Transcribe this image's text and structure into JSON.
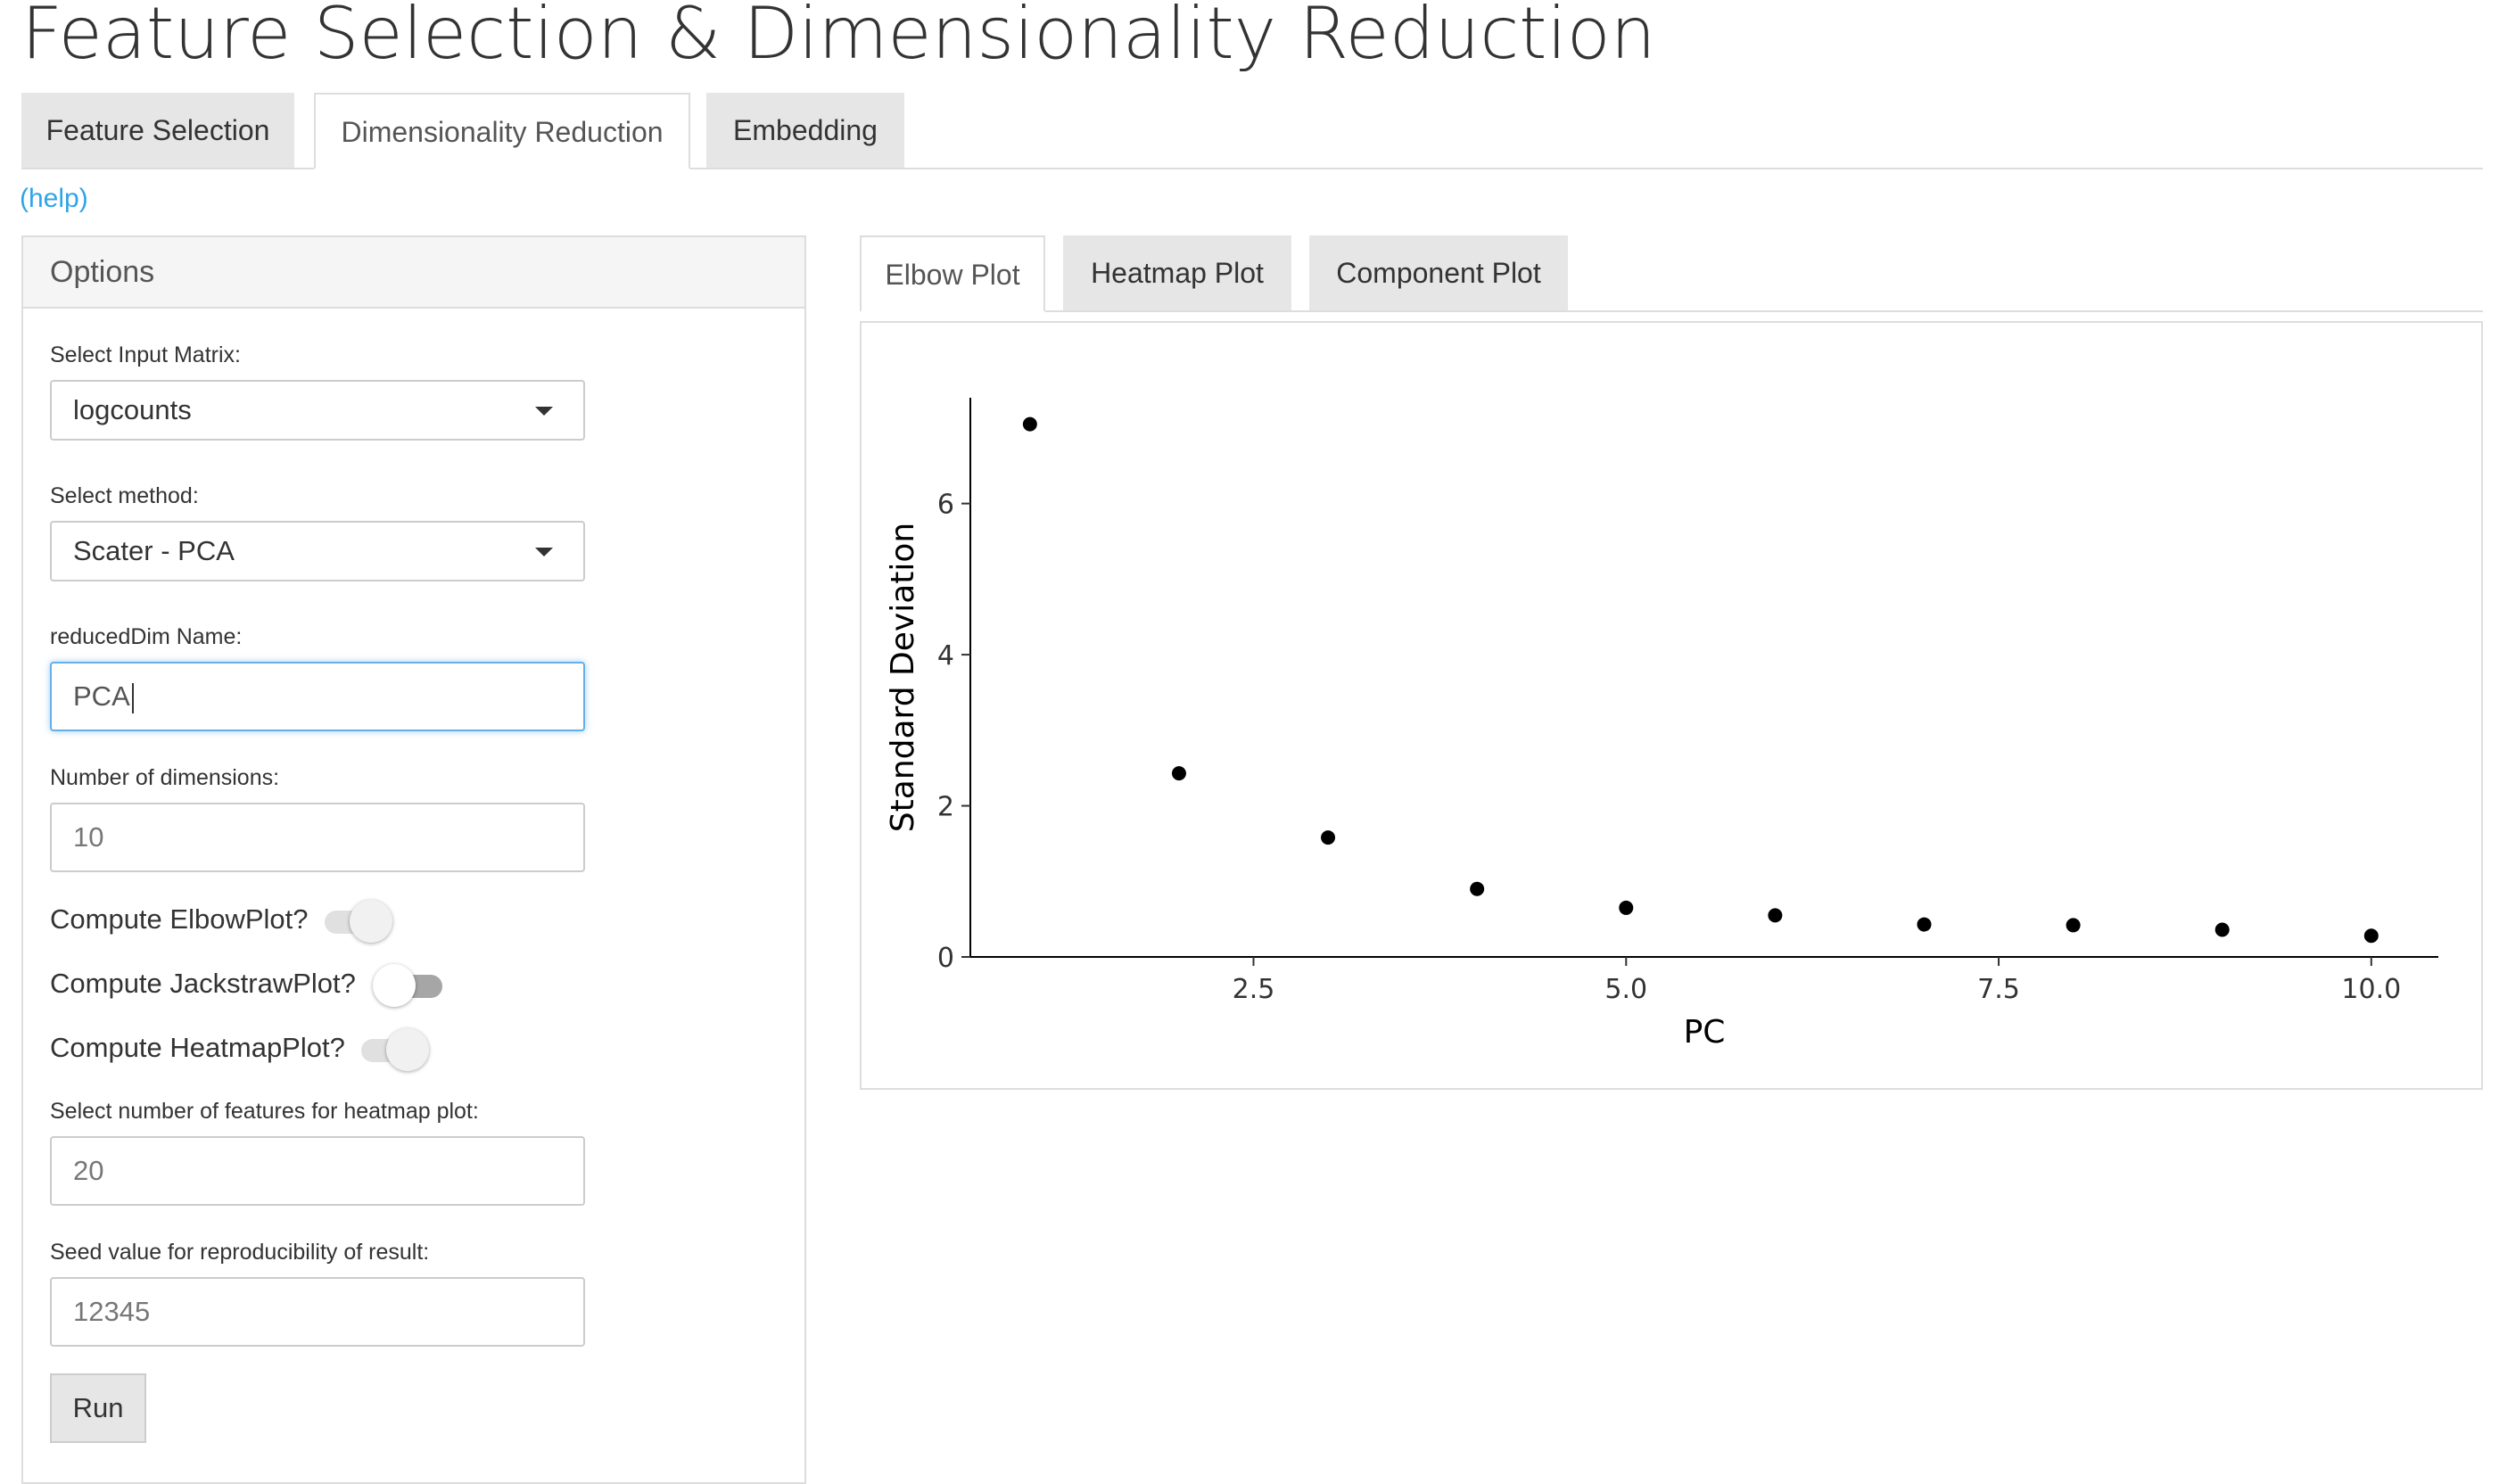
{
  "title": "Feature Selection & Dimensionality Reduction",
  "main_tabs": [
    {
      "label": "Feature Selection",
      "active": false
    },
    {
      "label": "Dimensionality Reduction",
      "active": true
    },
    {
      "label": "Embedding",
      "active": false
    }
  ],
  "help_label": "(help)",
  "options": {
    "heading": "Options",
    "input_matrix_label": "Select Input Matrix:",
    "input_matrix_value": "logcounts",
    "method_label": "Select method:",
    "method_value": "Scater - PCA",
    "reduceddim_label": "reducedDim Name:",
    "reduceddim_value": "PCA",
    "num_dims_label": "Number of dimensions:",
    "num_dims_value": "10",
    "elbow_label": "Compute ElbowPlot?",
    "elbow_on": true,
    "jackstraw_label": "Compute JackstrawPlot?",
    "jackstraw_on": false,
    "heatmap_label": "Compute HeatmapPlot?",
    "heatmap_on": true,
    "heatmap_features_label": "Select number of features for heatmap plot:",
    "heatmap_features_value": "20",
    "seed_label": "Seed value for reproducibility of result:",
    "seed_value": "12345",
    "run_label": "Run"
  },
  "plot_tabs": [
    {
      "label": "Elbow Plot",
      "active": true
    },
    {
      "label": "Heatmap Plot",
      "active": false
    },
    {
      "label": "Component Plot",
      "active": false
    }
  ],
  "chart_data": {
    "type": "scatter",
    "title": "",
    "xlabel": "PC",
    "ylabel": "Standard Deviation",
    "x": [
      1,
      2,
      3,
      4,
      5,
      6,
      7,
      8,
      9,
      10
    ],
    "y": [
      7.05,
      2.43,
      1.58,
      0.9,
      0.65,
      0.55,
      0.43,
      0.42,
      0.36,
      0.28
    ],
    "xlim": [
      0.6,
      10.45
    ],
    "ylim": [
      0,
      7.4
    ],
    "xticks": [
      2.5,
      5.0,
      7.5,
      10.0
    ],
    "xtick_labels": [
      "2.5",
      "5.0",
      "7.5",
      "10.0"
    ],
    "yticks": [
      0,
      2,
      4,
      6
    ],
    "ytick_labels": [
      "0",
      "2",
      "4",
      "6"
    ],
    "grid": false,
    "point_color": "#000000"
  }
}
